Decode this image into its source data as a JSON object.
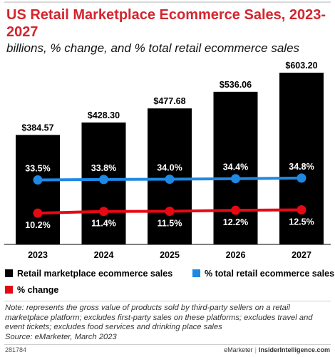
{
  "header": {
    "title": "US Retail Marketplace Ecommerce Sales, 2023-2027",
    "subtitle": "billions, % change, and % total retail ecommerce sales"
  },
  "chart_data": {
    "type": "bar",
    "categories": [
      "2023",
      "2024",
      "2025",
      "2026",
      "2027"
    ],
    "series": [
      {
        "name": "Retail marketplace ecommerce sales",
        "kind": "bar",
        "color": "#000000",
        "values": [
          384.57,
          428.3,
          477.68,
          536.06,
          603.2
        ],
        "labels": [
          "$384.57",
          "$428.30",
          "$477.68",
          "$536.06",
          "$603.20"
        ]
      },
      {
        "name": "% total retail ecommerce sales",
        "kind": "line",
        "color": "#1e88e5",
        "values": [
          33.5,
          33.8,
          34.0,
          34.4,
          34.8
        ],
        "labels": [
          "33.5%",
          "33.8%",
          "34.0%",
          "34.4%",
          "34.8%"
        ]
      },
      {
        "name": "% change",
        "kind": "line",
        "color": "#e50914",
        "values": [
          10.2,
          11.4,
          11.5,
          12.2,
          12.5
        ],
        "labels": [
          "10.2%",
          "11.4%",
          "11.5%",
          "12.2%",
          "12.5%"
        ]
      }
    ],
    "legend_position": "bottom",
    "grid": false
  },
  "legend": {
    "bar_label": "Retail marketplace ecommerce sales",
    "share_label": "% total retail ecommerce sales",
    "change_label": "% change"
  },
  "note": {
    "text": "Note: represents the gross value of products sold by third-party sellers on a retail marketplace platform; excludes first-party sales on these platforms; excludes travel and event tickets; excludes food services and drinking place sales",
    "source": "Source: eMarketer, March 2023"
  },
  "footer": {
    "chart_id": "281784",
    "brand": "eMarketer",
    "separator": "|",
    "site": "InsiderIntelligence.com"
  }
}
